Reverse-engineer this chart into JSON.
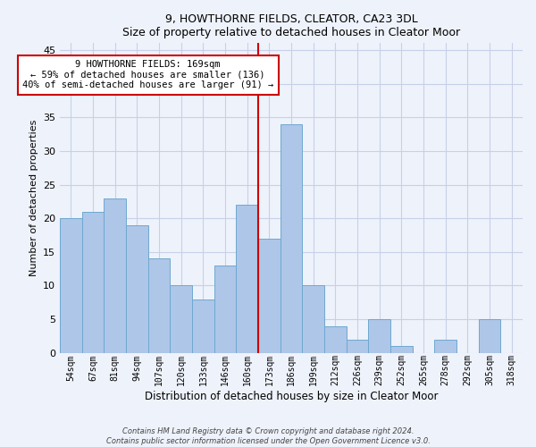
{
  "title1": "9, HOWTHORNE FIELDS, CLEATOR, CA23 3DL",
  "title2": "Size of property relative to detached houses in Cleator Moor",
  "xlabel": "Distribution of detached houses by size in Cleator Moor",
  "ylabel": "Number of detached properties",
  "categories": [
    "54sqm",
    "67sqm",
    "81sqm",
    "94sqm",
    "107sqm",
    "120sqm",
    "133sqm",
    "146sqm",
    "160sqm",
    "173sqm",
    "186sqm",
    "199sqm",
    "212sqm",
    "226sqm",
    "239sqm",
    "252sqm",
    "265sqm",
    "278sqm",
    "292sqm",
    "305sqm",
    "318sqm"
  ],
  "values": [
    20,
    21,
    23,
    19,
    14,
    10,
    8,
    13,
    22,
    17,
    34,
    10,
    4,
    2,
    5,
    1,
    0,
    2,
    0,
    5,
    0
  ],
  "bar_color": "#aec6e8",
  "bar_edge_color": "#6fa8d0",
  "bg_color": "#eef2fb",
  "grid_color": "#c8d0e8",
  "vline_color": "#cc0000",
  "annotation_line1": "9 HOWTHORNE FIELDS: 169sqm",
  "annotation_line2": "← 59% of detached houses are smaller (136)",
  "annotation_line3": "40% of semi-detached houses are larger (91) →",
  "annotation_box_color": "#ffffff",
  "annotation_box_edge": "#cc0000",
  "ylim": [
    0,
    46
  ],
  "yticks": [
    0,
    5,
    10,
    15,
    20,
    25,
    30,
    35,
    40,
    45
  ],
  "footnote1": "Contains HM Land Registry data © Crown copyright and database right 2024.",
  "footnote2": "Contains public sector information licensed under the Open Government Licence v3.0."
}
